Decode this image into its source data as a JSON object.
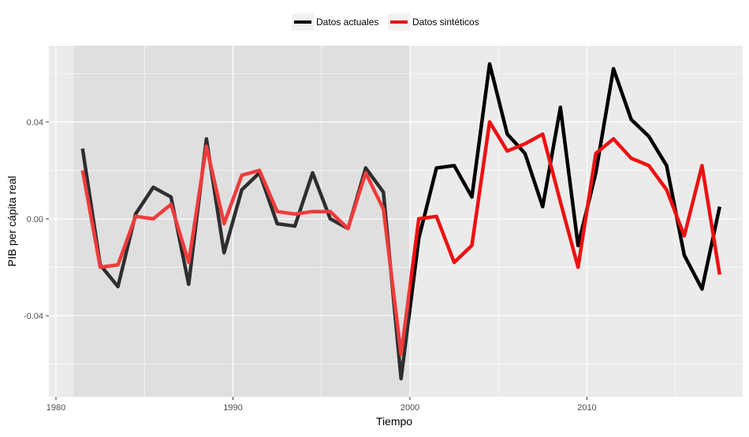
{
  "chart_data": {
    "type": "line",
    "xlabel": "Tiempo",
    "ylabel": "PIB per cápita real",
    "xlim": [
      1979.6,
      2018.8
    ],
    "ylim": [
      -0.0735,
      0.0715
    ],
    "x_ticks": [
      1980,
      1990,
      2000,
      2010
    ],
    "y_ticks": [
      -0.04,
      0.0,
      0.04
    ],
    "x_tick_labels": [
      "1980",
      "1990",
      "2000",
      "2010"
    ],
    "y_tick_labels": [
      "-0.04",
      "0.00",
      "0.04"
    ],
    "grid": true,
    "legend_position": "top",
    "shaded_region": {
      "x_start": 1981,
      "x_end": 2000,
      "color": "#d8d8d8"
    },
    "panel_background": "#ebebeb",
    "grid_color": "#ffffff",
    "x": [
      1981.5,
      1982.5,
      1983.5,
      1984.5,
      1985.5,
      1986.5,
      1987.5,
      1988.5,
      1989.5,
      1990.5,
      1991.5,
      1992.5,
      1993.5,
      1994.5,
      1995.5,
      1996.5,
      1997.5,
      1998.5,
      1999.5,
      2000.5,
      2001.5,
      2002.5,
      2003.5,
      2004.5,
      2005.5,
      2006.5,
      2007.5,
      2008.5,
      2009.5,
      2010.5,
      2011.5,
      2012.5,
      2013.5,
      2014.5,
      2015.5,
      2016.5,
      2017.5
    ],
    "series": [
      {
        "name": "Datos actuales",
        "color": "#000000",
        "values": [
          0.029,
          -0.019,
          -0.028,
          0.002,
          0.013,
          0.009,
          -0.027,
          0.033,
          -0.014,
          0.012,
          0.019,
          -0.002,
          -0.003,
          0.019,
          0.0,
          -0.004,
          0.021,
          0.011,
          -0.066,
          -0.008,
          0.021,
          0.022,
          0.009,
          0.064,
          0.035,
          0.027,
          0.005,
          0.046,
          -0.011,
          0.019,
          0.062,
          0.041,
          0.034,
          0.022,
          -0.015,
          -0.029,
          0.005
        ]
      },
      {
        "name": "Datos sintéticos",
        "color": "#ee1111",
        "values": [
          0.02,
          -0.02,
          -0.019,
          0.001,
          0.0,
          0.006,
          -0.018,
          0.03,
          -0.002,
          0.018,
          0.02,
          0.003,
          0.002,
          0.003,
          0.003,
          -0.004,
          0.019,
          0.004,
          -0.056,
          0.0,
          0.001,
          -0.018,
          -0.011,
          0.04,
          0.028,
          0.031,
          0.035,
          0.007,
          -0.02,
          0.027,
          0.033,
          0.025,
          0.022,
          0.012,
          -0.007,
          0.022,
          -0.023
        ]
      }
    ]
  }
}
